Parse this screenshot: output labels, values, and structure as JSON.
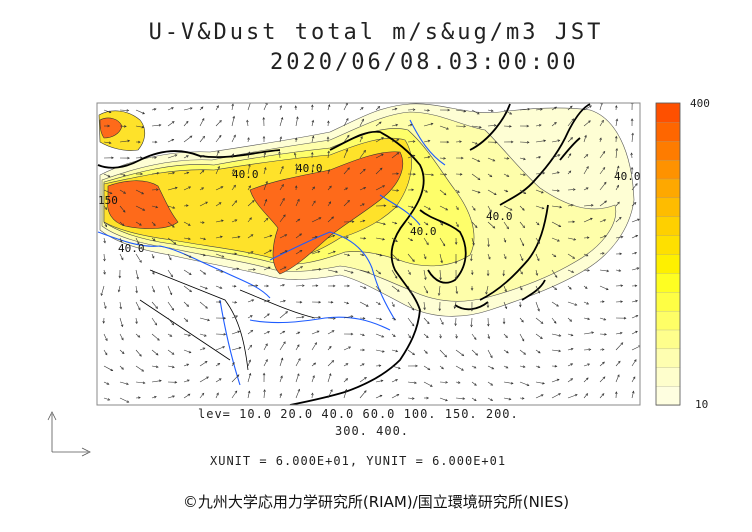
{
  "header": {
    "title": "U-V&Dust total m/s&ug/m3 JST",
    "timestamp": "2020/06/08.03:00:00"
  },
  "legend": {
    "levels_line1": "lev= 10.0 20.0 40.0 60.0 100. 150. 200.",
    "levels_line2": "300. 400.",
    "units_line": "XUNIT = 6.000E+01, YUNIT = 6.000E+01"
  },
  "colorbar": {
    "max_label": "400",
    "min_label": "10",
    "colors": [
      "#fefee0",
      "#fefecc",
      "#fefeb0",
      "#fefe8c",
      "#fefe66",
      "#fefe44",
      "#fefe22",
      "#fef000",
      "#fee000",
      "#fed000",
      "#febc00",
      "#fea800",
      "#fe9200",
      "#fe7c00",
      "#fe6600",
      "#fe5000"
    ]
  },
  "map": {
    "contour_labels": [
      "40.0",
      "40.0",
      "40.0",
      "150",
      "40.0",
      "40.0",
      "40.0"
    ],
    "colors": {
      "land": "#ffffff",
      "coast": "#000000",
      "rivers": "#1e5cff",
      "frame": "#888888"
    }
  },
  "footer": {
    "copyright": "©九州大学応用力学研究所(RIAM)/国立環境研究所(NIES)"
  }
}
